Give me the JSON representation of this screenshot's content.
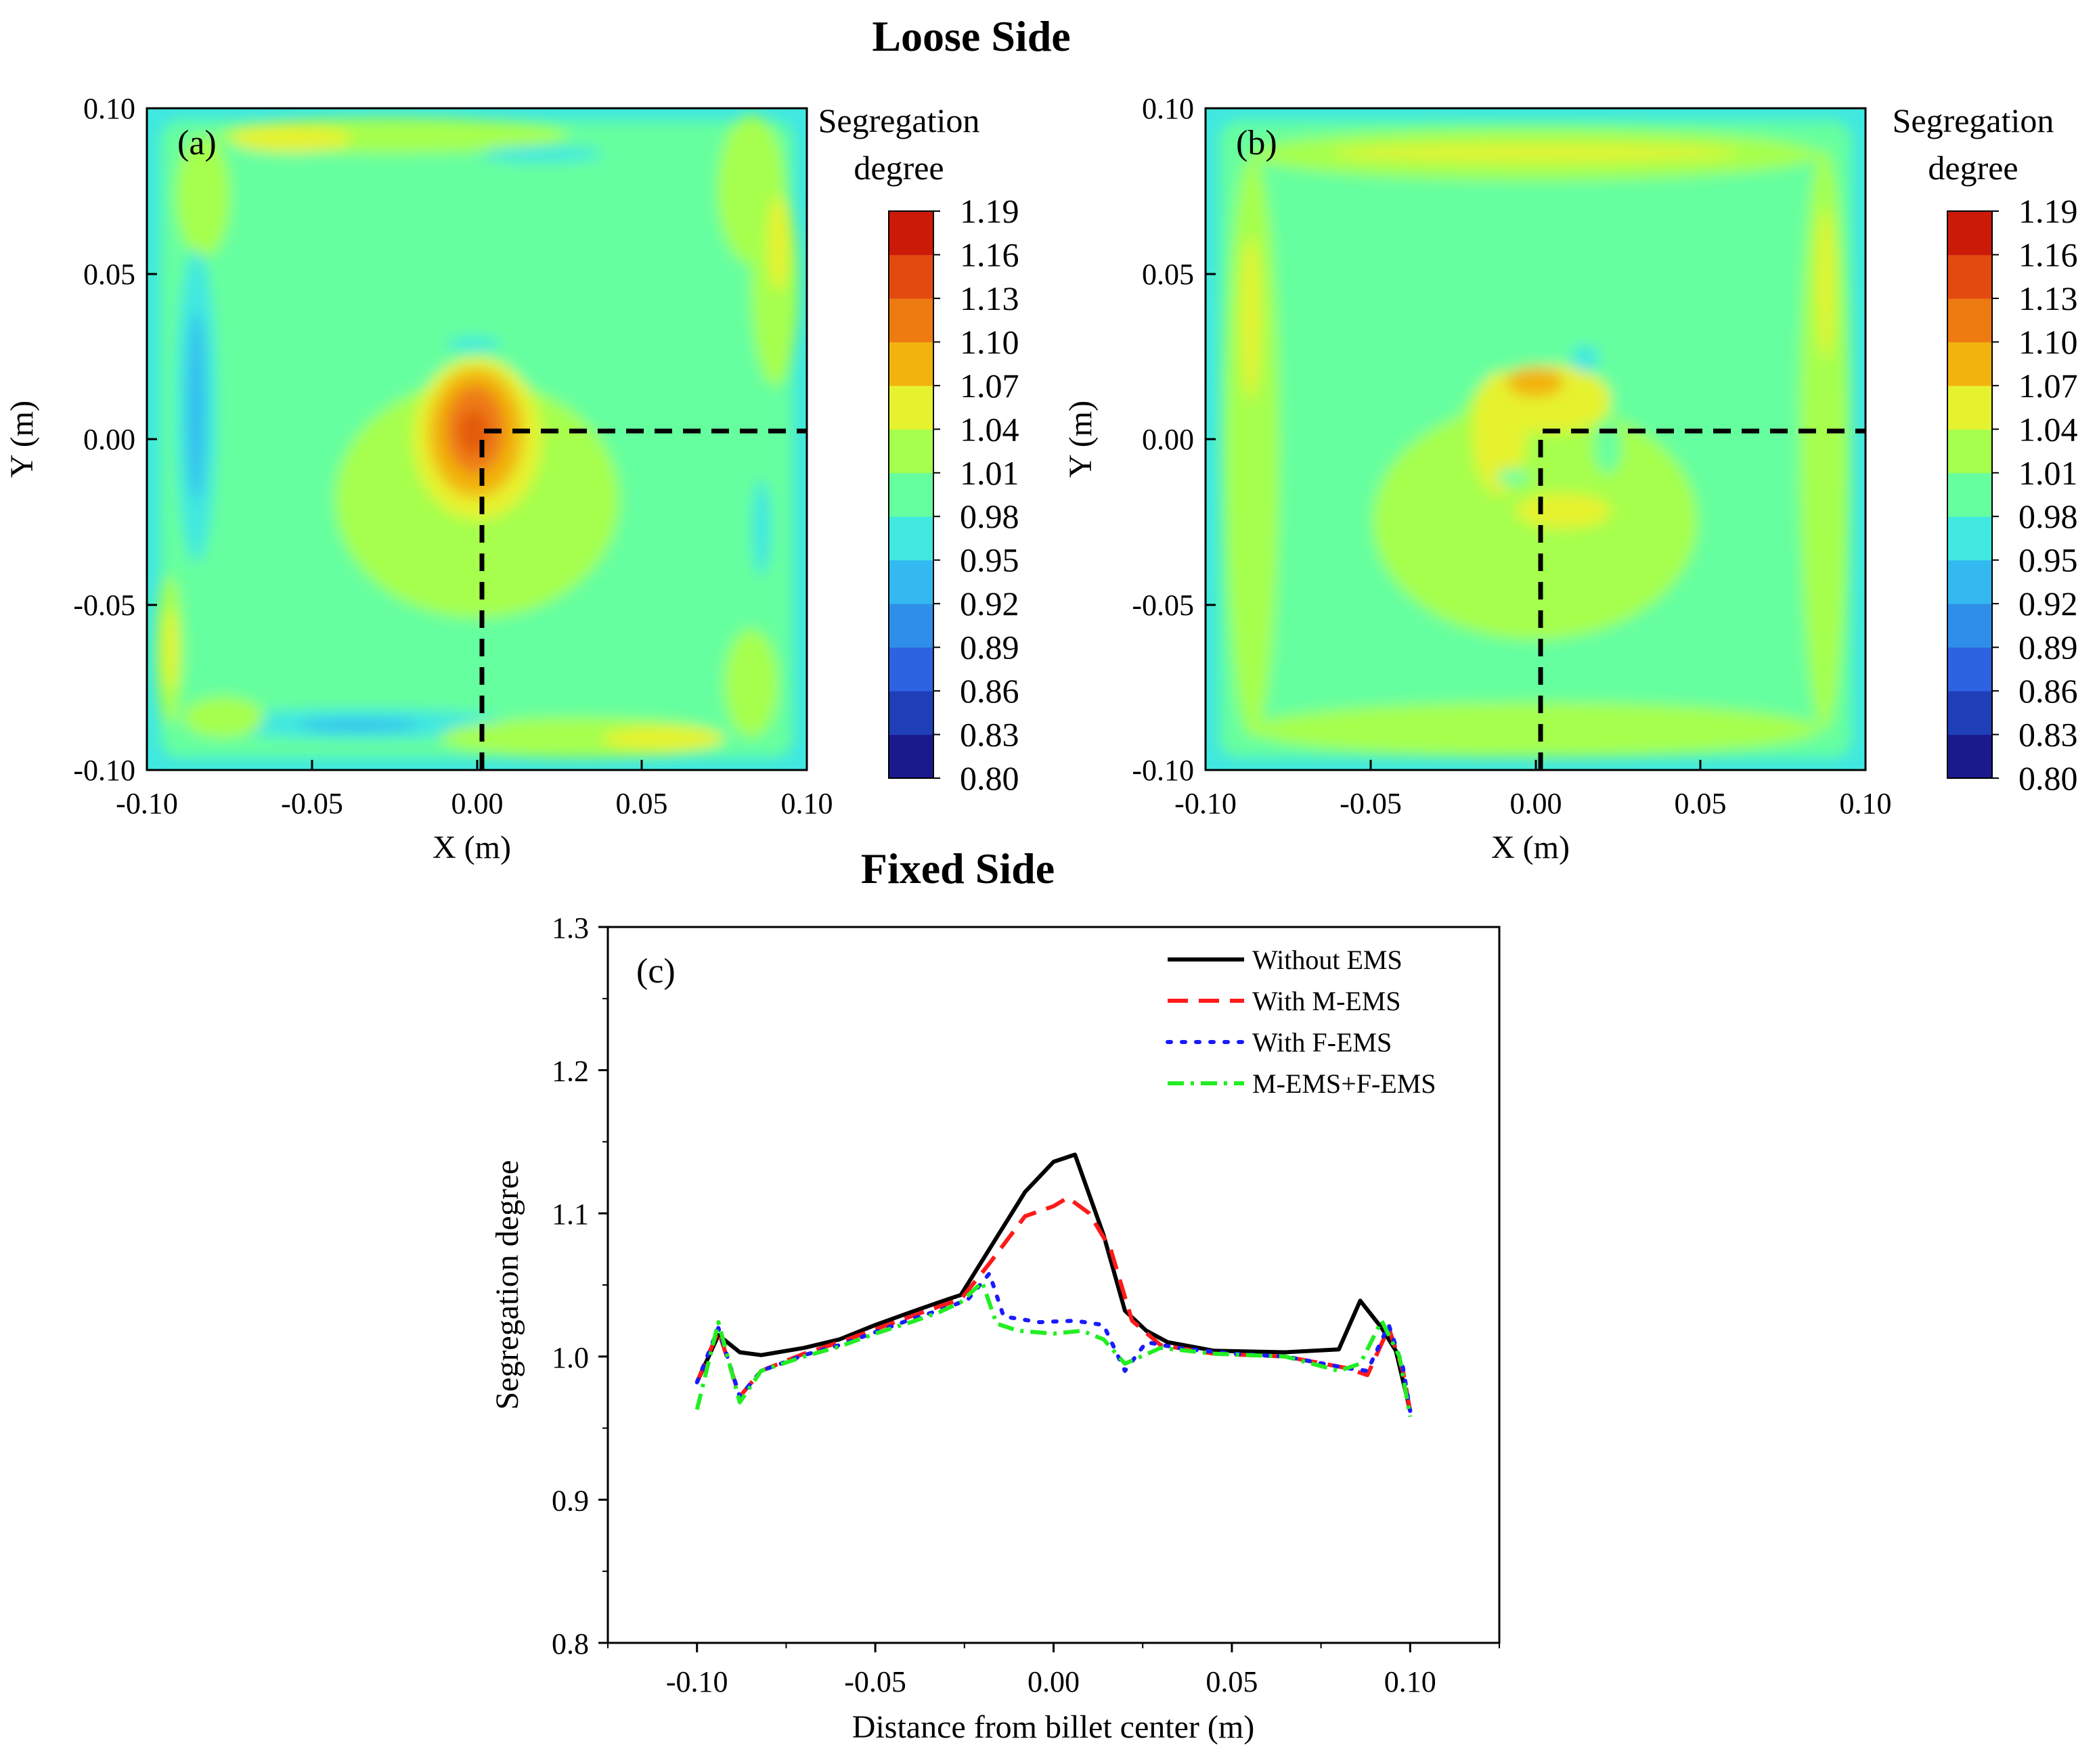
{
  "figure": {
    "title_top": "Loose Side",
    "title_bottom": "Fixed Side"
  },
  "colors": {
    "background_field": "#66ff9f",
    "border_band": "#3fe6e0",
    "colorbar": [
      "#1a1a8c",
      "#1f3fb8",
      "#2d63e0",
      "#2f8ee8",
      "#33b8f0",
      "#40e8e0",
      "#66ff9f",
      "#a6ff4d",
      "#e6f22e",
      "#f2b30f",
      "#ee7a12",
      "#e34a10",
      "#cc1a08"
    ]
  },
  "chart_data": [
    {
      "type": "heatmap",
      "panel_label": "(a)",
      "title": "Loose Side",
      "xlabel": "X (m)",
      "ylabel": "Y (m)",
      "xlim": [
        -0.1,
        0.1
      ],
      "ylim": [
        -0.1,
        0.1
      ],
      "x_ticks": [
        "-0.10",
        "-0.05",
        "0.00",
        "0.05",
        "0.10"
      ],
      "y_ticks": [
        "0.10",
        "0.05",
        "0.00",
        "-0.05",
        "-0.10"
      ],
      "colorbar_title": [
        "Segregation",
        "degree"
      ],
      "colorbar_ticks": [
        "1.19",
        "1.16",
        "1.13",
        "1.10",
        "1.07",
        "1.04",
        "1.01",
        "0.98",
        "0.95",
        "0.92",
        "0.89",
        "0.86",
        "0.83",
        "0.80"
      ],
      "colorbar_range": [
        0.8,
        1.19
      ],
      "center_value_max": 1.13,
      "sampling_path": "dashed line from (0.00,-0.10) to (0.00,0.00) to (0.10,0.00)"
    },
    {
      "type": "heatmap",
      "panel_label": "(b)",
      "xlabel": "X (m)",
      "ylabel": "Y (m)",
      "xlim": [
        -0.1,
        0.1
      ],
      "ylim": [
        -0.1,
        0.1
      ],
      "x_ticks": [
        "-0.10",
        "-0.05",
        "0.00",
        "0.05",
        "0.10"
      ],
      "y_ticks": [
        "0.10",
        "0.05",
        "0.00",
        "-0.05",
        "-0.10"
      ],
      "colorbar_title": [
        "Segregation",
        "degree"
      ],
      "colorbar_ticks": [
        "1.19",
        "1.16",
        "1.13",
        "1.10",
        "1.07",
        "1.04",
        "1.01",
        "0.98",
        "0.95",
        "0.92",
        "0.89",
        "0.86",
        "0.83",
        "0.80"
      ],
      "colorbar_range": [
        0.8,
        1.19
      ],
      "center_value_max": 1.1,
      "sampling_path": "dashed line from (0.00,-0.10) to (0.00,0.00) to (0.10,0.00)"
    },
    {
      "type": "line",
      "panel_label": "(c)",
      "title": "Fixed Side",
      "xlabel": "Distance from billet center (m)",
      "ylabel": "Segregation degree",
      "xlim": [
        -0.125,
        0.125
      ],
      "ylim": [
        0.8,
        1.3
      ],
      "x_ticks": [
        "-0.10",
        "-0.05",
        "0.00",
        "0.05",
        "0.10"
      ],
      "x_tick_values": [
        -0.1,
        -0.05,
        0.0,
        0.05,
        0.1
      ],
      "y_ticks": [
        "0.8",
        "0.9",
        "1.0",
        "1.1",
        "1.2",
        "1.3"
      ],
      "y_tick_values": [
        0.8,
        0.9,
        1.0,
        1.1,
        1.2,
        1.3
      ],
      "legend_position": "top-right",
      "series": [
        {
          "name": "Without EMS",
          "color": "#000000",
          "dash": "solid",
          "points": [
            [
              -0.1,
              0.982
            ],
            [
              -0.094,
              1.015
            ],
            [
              -0.088,
              1.003
            ],
            [
              -0.082,
              1.001
            ],
            [
              -0.07,
              1.006
            ],
            [
              -0.06,
              1.012
            ],
            [
              -0.05,
              1.022
            ],
            [
              -0.04,
              1.031
            ],
            [
              -0.032,
              1.038
            ],
            [
              -0.026,
              1.043
            ],
            [
              -0.018,
              1.075
            ],
            [
              -0.008,
              1.115
            ],
            [
              0.0,
              1.136
            ],
            [
              0.006,
              1.141
            ],
            [
              0.014,
              1.085
            ],
            [
              0.02,
              1.032
            ],
            [
              0.026,
              1.018
            ],
            [
              0.032,
              1.01
            ],
            [
              0.045,
              1.004
            ],
            [
              0.065,
              1.003
            ],
            [
              0.08,
              1.005
            ],
            [
              0.086,
              1.039
            ],
            [
              0.092,
              1.02
            ],
            [
              0.096,
              1.004
            ],
            [
              0.1,
              0.962
            ]
          ]
        },
        {
          "name": "With M-EMS",
          "color": "#ff1a1a",
          "dash": "dashed",
          "points": [
            [
              -0.1,
              0.982
            ],
            [
              -0.094,
              1.018
            ],
            [
              -0.088,
              0.972
            ],
            [
              -0.082,
              0.99
            ],
            [
              -0.07,
              1.002
            ],
            [
              -0.06,
              1.01
            ],
            [
              -0.05,
              1.019
            ],
            [
              -0.04,
              1.028
            ],
            [
              -0.032,
              1.035
            ],
            [
              -0.026,
              1.04
            ],
            [
              -0.018,
              1.065
            ],
            [
              -0.008,
              1.098
            ],
            [
              0.0,
              1.105
            ],
            [
              0.004,
              1.111
            ],
            [
              0.01,
              1.1
            ],
            [
              0.016,
              1.075
            ],
            [
              0.022,
              1.025
            ],
            [
              0.03,
              1.008
            ],
            [
              0.045,
              1.002
            ],
            [
              0.065,
              1.0
            ],
            [
              0.082,
              0.992
            ],
            [
              0.088,
              0.987
            ],
            [
              0.094,
              1.02
            ],
            [
              0.098,
              0.99
            ],
            [
              0.1,
              0.962
            ]
          ]
        },
        {
          "name": "With F-EMS",
          "color": "#1a1aff",
          "dash": "dotted",
          "points": [
            [
              -0.1,
              0.982
            ],
            [
              -0.094,
              1.02
            ],
            [
              -0.088,
              0.972
            ],
            [
              -0.082,
              0.99
            ],
            [
              -0.07,
              1.001
            ],
            [
              -0.06,
              1.008
            ],
            [
              -0.05,
              1.017
            ],
            [
              -0.04,
              1.026
            ],
            [
              -0.03,
              1.034
            ],
            [
              -0.024,
              1.04
            ],
            [
              -0.018,
              1.058
            ],
            [
              -0.014,
              1.028
            ],
            [
              -0.004,
              1.024
            ],
            [
              0.006,
              1.025
            ],
            [
              0.014,
              1.022
            ],
            [
              0.02,
              0.99
            ],
            [
              0.026,
              1.01
            ],
            [
              0.035,
              1.006
            ],
            [
              0.05,
              1.002
            ],
            [
              0.065,
              1.0
            ],
            [
              0.082,
              0.992
            ],
            [
              0.088,
              0.99
            ],
            [
              0.094,
              1.022
            ],
            [
              0.098,
              0.992
            ],
            [
              0.1,
              0.962
            ]
          ]
        },
        {
          "name": "M-EMS+F-EMS",
          "color": "#22ee22",
          "dash": "dashdot",
          "points": [
            [
              -0.1,
              0.963
            ],
            [
              -0.094,
              1.024
            ],
            [
              -0.088,
              0.968
            ],
            [
              -0.082,
              0.99
            ],
            [
              -0.07,
              1.0
            ],
            [
              -0.06,
              1.007
            ],
            [
              -0.05,
              1.016
            ],
            [
              -0.04,
              1.024
            ],
            [
              -0.032,
              1.031
            ],
            [
              -0.026,
              1.038
            ],
            [
              -0.02,
              1.052
            ],
            [
              -0.016,
              1.023
            ],
            [
              -0.01,
              1.018
            ],
            [
              0.0,
              1.016
            ],
            [
              0.008,
              1.018
            ],
            [
              0.014,
              1.012
            ],
            [
              0.02,
              0.995
            ],
            [
              0.03,
              1.006
            ],
            [
              0.045,
              1.002
            ],
            [
              0.065,
              1.0
            ],
            [
              0.08,
              0.99
            ],
            [
              0.086,
              0.995
            ],
            [
              0.092,
              1.025
            ],
            [
              0.097,
              1.0
            ],
            [
              0.1,
              0.958
            ]
          ]
        }
      ]
    }
  ]
}
